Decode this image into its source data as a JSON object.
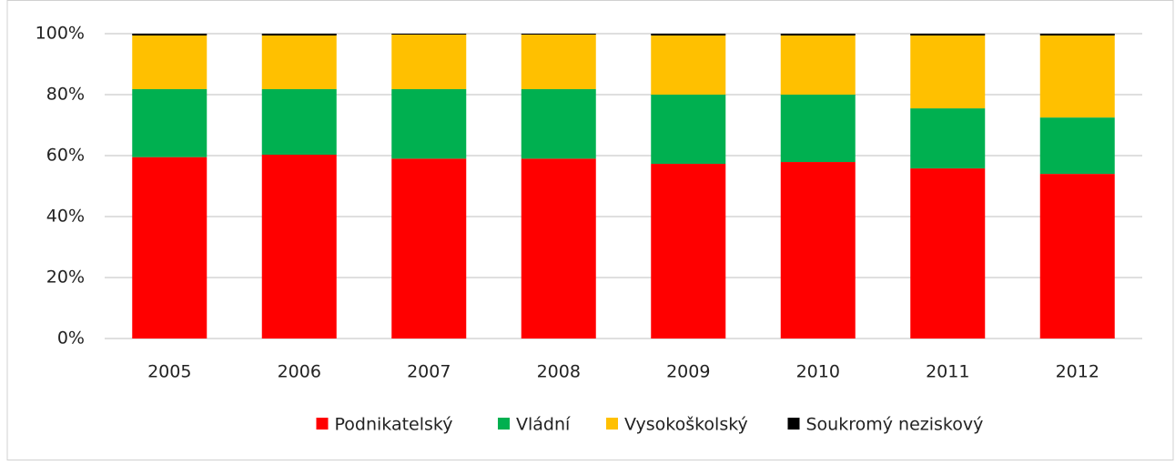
{
  "chart_data": {
    "type": "stacked_bar",
    "categories": [
      "2005",
      "2006",
      "2007",
      "2008",
      "2009",
      "2010",
      "2011",
      "2012"
    ],
    "series": [
      {
        "name": "Podnikatelský",
        "color": "#ff0000",
        "values": [
          59.5,
          60.3,
          59,
          59,
          57.3,
          57.9,
          55.8,
          54
        ]
      },
      {
        "name": "Vládní",
        "color": "#00b050",
        "values": [
          22.3,
          21.5,
          22.8,
          22.8,
          22.7,
          22.1,
          19.7,
          18.5
        ]
      },
      {
        "name": "Vysokoškolský",
        "color": "#ffc000",
        "values": [
          17.6,
          17.6,
          17.9,
          17.9,
          19.4,
          19.4,
          23.9,
          26.9
        ]
      },
      {
        "name": "Soukromý neziskový",
        "color": "#000000",
        "values": [
          0.6,
          0.6,
          0.3,
          0.3,
          0.6,
          0.6,
          0.6,
          0.6
        ]
      }
    ],
    "ylim": [
      0,
      100
    ],
    "yticks": [
      {
        "value": 0,
        "label": "0%"
      },
      {
        "value": 20,
        "label": "20%"
      },
      {
        "value": 40,
        "label": "40%"
      },
      {
        "value": 60,
        "label": "60%"
      },
      {
        "value": 80,
        "label": "80%"
      },
      {
        "value": 100,
        "label": "100%"
      }
    ],
    "grid": true,
    "legend": "bottom"
  }
}
